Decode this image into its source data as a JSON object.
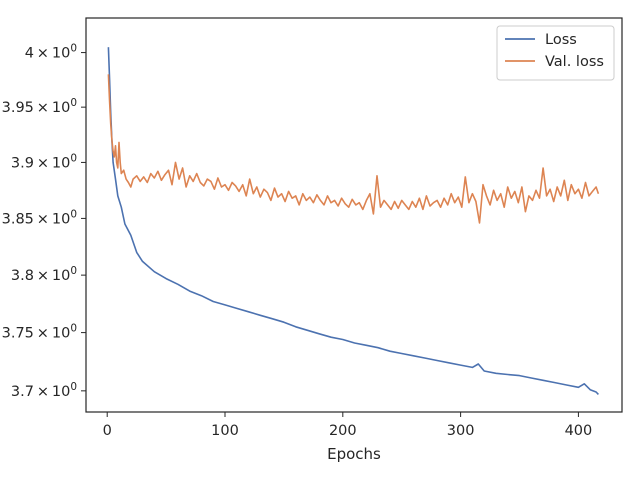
{
  "chart_data": {
    "type": "line",
    "title": "",
    "xlabel": "Epochs",
    "ylabel": "",
    "xlim": [
      -18,
      437
    ],
    "ylim": [
      3.682,
      4.032
    ],
    "y_scale": "log",
    "grid": false,
    "legend_position": "top-right",
    "x_ticks": [
      0,
      100,
      200,
      300,
      400
    ],
    "x_tick_labels": [
      "0",
      "100",
      "200",
      "300",
      "400"
    ],
    "y_ticks": [
      3.7,
      3.75,
      3.8,
      3.85,
      3.9,
      3.95,
      4.0
    ],
    "y_tick_labels": [
      {
        "base": "3.7",
        "exp": "0"
      },
      {
        "base": "3.75",
        "exp": "0"
      },
      {
        "base": "3.8",
        "exp": "0"
      },
      {
        "base": "3.85",
        "exp": "0"
      },
      {
        "base": "3.9",
        "exp": "0"
      },
      {
        "base": "3.95",
        "exp": "0"
      },
      {
        "base": "4",
        "exp": "0"
      }
    ],
    "series": [
      {
        "name": "Loss",
        "color": "#4c72b0",
        "x": [
          1,
          2,
          3,
          4,
          5,
          7,
          9,
          12,
          15,
          20,
          25,
          30,
          40,
          50,
          60,
          70,
          80,
          90,
          100,
          110,
          120,
          130,
          140,
          150,
          160,
          170,
          180,
          190,
          200,
          210,
          220,
          230,
          240,
          250,
          260,
          270,
          280,
          290,
          300,
          310,
          315,
          320,
          330,
          340,
          350,
          360,
          370,
          380,
          390,
          400,
          405,
          410,
          415,
          417
        ],
        "values": [
          4.005,
          3.975,
          3.945,
          3.92,
          3.9,
          3.885,
          3.87,
          3.86,
          3.845,
          3.835,
          3.82,
          3.812,
          3.803,
          3.797,
          3.792,
          3.786,
          3.782,
          3.777,
          3.774,
          3.771,
          3.768,
          3.765,
          3.762,
          3.759,
          3.755,
          3.752,
          3.749,
          3.746,
          3.744,
          3.741,
          3.739,
          3.737,
          3.734,
          3.732,
          3.73,
          3.728,
          3.726,
          3.724,
          3.722,
          3.72,
          3.723,
          3.717,
          3.715,
          3.714,
          3.713,
          3.711,
          3.709,
          3.707,
          3.705,
          3.703,
          3.706,
          3.701,
          3.699,
          3.697
        ]
      },
      {
        "name": "Val. loss",
        "color": "#dd8452",
        "x": [
          1,
          2,
          3,
          4,
          5,
          6,
          7,
          8,
          9,
          10,
          11,
          12,
          14,
          16,
          18,
          20,
          22,
          25,
          28,
          31,
          34,
          37,
          40,
          43,
          46,
          49,
          52,
          55,
          58,
          61,
          64,
          67,
          70,
          73,
          76,
          79,
          82,
          85,
          88,
          91,
          94,
          97,
          100,
          103,
          106,
          109,
          112,
          115,
          118,
          121,
          124,
          127,
          130,
          133,
          136,
          139,
          142,
          145,
          148,
          151,
          154,
          157,
          160,
          163,
          166,
          169,
          172,
          175,
          178,
          181,
          184,
          187,
          190,
          193,
          196,
          199,
          202,
          205,
          208,
          211,
          214,
          217,
          220,
          223,
          226,
          229,
          232,
          235,
          238,
          241,
          244,
          247,
          250,
          253,
          256,
          259,
          262,
          265,
          268,
          271,
          274,
          277,
          280,
          283,
          286,
          289,
          292,
          295,
          298,
          301,
          304,
          307,
          310,
          313,
          316,
          319,
          322,
          325,
          328,
          331,
          334,
          337,
          340,
          343,
          346,
          349,
          352,
          355,
          358,
          361,
          364,
          367,
          370,
          373,
          376,
          379,
          382,
          385,
          388,
          391,
          394,
          397,
          400,
          403,
          406,
          409,
          412,
          415,
          417
        ],
        "values": [
          3.98,
          3.955,
          3.935,
          3.92,
          3.91,
          3.905,
          3.915,
          3.9,
          3.895,
          3.918,
          3.9,
          3.89,
          3.893,
          3.885,
          3.882,
          3.878,
          3.885,
          3.888,
          3.883,
          3.887,
          3.882,
          3.89,
          3.886,
          3.892,
          3.884,
          3.889,
          3.893,
          3.88,
          3.9,
          3.885,
          3.895,
          3.878,
          3.888,
          3.883,
          3.89,
          3.882,
          3.879,
          3.885,
          3.883,
          3.876,
          3.886,
          3.878,
          3.88,
          3.875,
          3.882,
          3.879,
          3.874,
          3.88,
          3.87,
          3.885,
          3.872,
          3.878,
          3.869,
          3.876,
          3.873,
          3.866,
          3.877,
          3.869,
          3.872,
          3.865,
          3.874,
          3.868,
          3.87,
          3.862,
          3.872,
          3.866,
          3.869,
          3.864,
          3.871,
          3.866,
          3.862,
          3.87,
          3.864,
          3.866,
          3.861,
          3.868,
          3.863,
          3.86,
          3.867,
          3.862,
          3.864,
          3.858,
          3.866,
          3.872,
          3.854,
          3.888,
          3.86,
          3.866,
          3.862,
          3.858,
          3.865,
          3.859,
          3.866,
          3.862,
          3.858,
          3.865,
          3.86,
          3.868,
          3.858,
          3.87,
          3.861,
          3.864,
          3.866,
          3.86,
          3.868,
          3.862,
          3.872,
          3.864,
          3.869,
          3.86,
          3.887,
          3.864,
          3.872,
          3.865,
          3.846,
          3.88,
          3.87,
          3.862,
          3.875,
          3.866,
          3.872,
          3.86,
          3.878,
          3.868,
          3.874,
          3.864,
          3.878,
          3.856,
          3.87,
          3.866,
          3.875,
          3.868,
          3.895,
          3.87,
          3.876,
          3.865,
          3.878,
          3.87,
          3.884,
          3.866,
          3.88,
          3.872,
          3.876,
          3.868,
          3.882,
          3.87,
          3.874,
          3.878,
          3.872
        ]
      }
    ]
  }
}
